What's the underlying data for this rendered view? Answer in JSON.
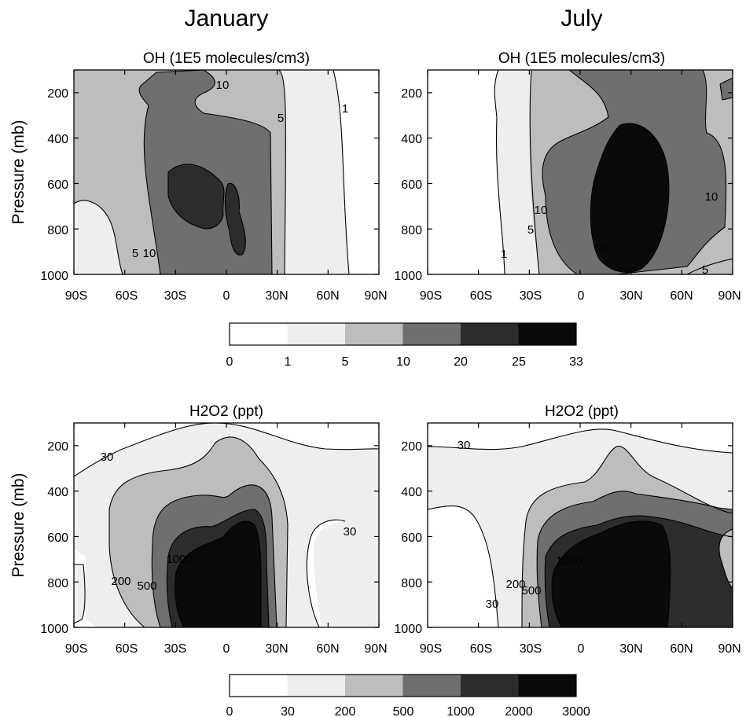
{
  "column_titles": [
    "January",
    "July"
  ],
  "chart_data": [
    {
      "type": "contour",
      "title": "OH (1E5 molecules/cm3)",
      "column": "January",
      "ylabel": "Pressure (mb)",
      "xlabel": "",
      "x_ticks": [
        "90S",
        "60S",
        "30S",
        "0",
        "30N",
        "60N",
        "90N"
      ],
      "y_ticks": [
        "200",
        "400",
        "600",
        "800",
        "1000"
      ],
      "ylim": [
        1000,
        100
      ],
      "levels": [
        0,
        1,
        5,
        10,
        20,
        25,
        33
      ],
      "contour_labels": [
        "10",
        "5",
        "1",
        "5",
        "10"
      ],
      "colorbar_group": "OH"
    },
    {
      "type": "contour",
      "title": "OH (1E5 molecules/cm3)",
      "column": "July",
      "ylabel": "",
      "xlabel": "",
      "x_ticks": [
        "90S",
        "60S",
        "30S",
        "0",
        "30N",
        "60N",
        "90N"
      ],
      "y_ticks": [
        "200",
        "400",
        "600",
        "800",
        "1000"
      ],
      "ylim": [
        1000,
        100
      ],
      "levels": [
        0,
        1,
        5,
        10,
        20,
        25,
        33
      ],
      "contour_labels": [
        "10",
        "5",
        "1",
        "20",
        "10",
        "5"
      ],
      "colorbar_group": "OH"
    },
    {
      "type": "contour",
      "title": "H2O2 (ppt)",
      "column": "January",
      "ylabel": "Pressure (mb)",
      "xlabel": "",
      "x_ticks": [
        "90S",
        "60S",
        "30S",
        "0",
        "30N",
        "60N",
        "90N"
      ],
      "y_ticks": [
        "200",
        "400",
        "600",
        "800",
        "1000"
      ],
      "ylim": [
        1000,
        100
      ],
      "levels": [
        0,
        30,
        200,
        500,
        1000,
        2000,
        3000
      ],
      "contour_labels": [
        "30",
        "200",
        "500",
        "1000",
        "30"
      ],
      "colorbar_group": "H2O2"
    },
    {
      "type": "contour",
      "title": "H2O2 (ppt)",
      "column": "July",
      "ylabel": "",
      "xlabel": "",
      "x_ticks": [
        "90S",
        "60S",
        "30S",
        "0",
        "30N",
        "60N",
        "90N"
      ],
      "y_ticks": [
        "200",
        "400",
        "600",
        "800",
        "1000"
      ],
      "ylim": [
        1000,
        100
      ],
      "levels": [
        0,
        30,
        200,
        500,
        1000,
        2000,
        3000
      ],
      "contour_labels": [
        "30",
        "30",
        "200",
        "500",
        "1000"
      ],
      "colorbar_group": "H2O2"
    }
  ],
  "colorbars": [
    {
      "name": "OH",
      "labels": [
        "0",
        "1",
        "5",
        "10",
        "20",
        "25",
        "33"
      ],
      "colors": [
        "#ffffff",
        "#eeeeee",
        "#bdbdbd",
        "#6f6f6f",
        "#2c2c2c",
        "#0a0a0a"
      ]
    },
    {
      "name": "H2O2",
      "labels": [
        "0",
        "30",
        "200",
        "500",
        "1000",
        "2000",
        "3000"
      ],
      "colors": [
        "#ffffff",
        "#eeeeee",
        "#bdbdbd",
        "#6f6f6f",
        "#2c2c2c",
        "#0a0a0a"
      ]
    }
  ],
  "shade_colors": {
    "l1": "#eeeeee",
    "l2": "#bdbdbd",
    "l3": "#6f6f6f",
    "l4": "#2c2c2c",
    "l5": "#0a0a0a"
  }
}
